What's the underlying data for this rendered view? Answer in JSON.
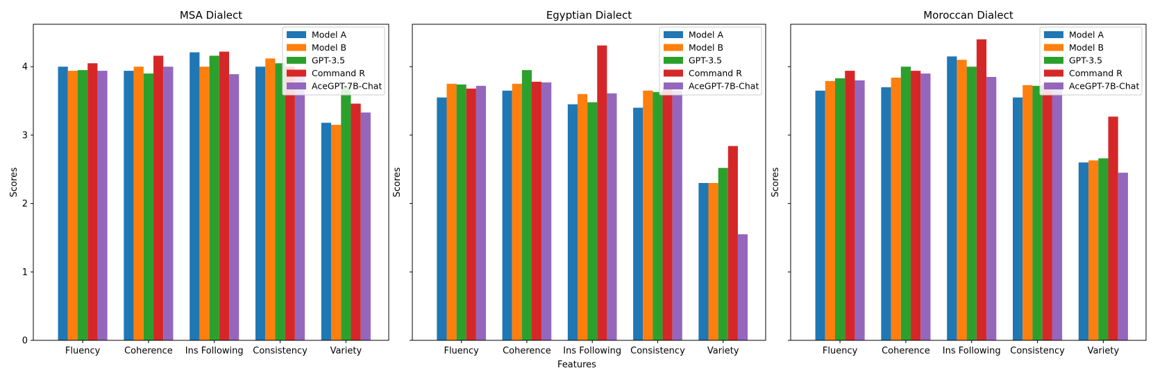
{
  "figure": {
    "xlabel": "Features"
  },
  "legend": {
    "entries": [
      {
        "name": "Model A",
        "color": "#1f77b4"
      },
      {
        "name": "Model B",
        "color": "#ff7f0e"
      },
      {
        "name": "GPT-3.5",
        "color": "#2ca02c"
      },
      {
        "name": "Command R",
        "color": "#d62728"
      },
      {
        "name": "AceGPT-7B-Chat",
        "color": "#9467bd"
      }
    ],
    "placement": "top-right"
  },
  "chart_data": [
    {
      "type": "bar",
      "title": "MSA Dialect",
      "xlabel": "",
      "ylabel": "Scores",
      "ylim": [
        0,
        4.62
      ],
      "yticks": [
        0,
        1,
        2,
        3,
        4
      ],
      "grid": false,
      "categories": [
        "Fluency",
        "Coherence",
        "Ins Following",
        "Consistency",
        "Variety"
      ],
      "series": [
        {
          "name": "Model A",
          "values": [
            4.0,
            3.94,
            4.21,
            4.0,
            3.18
          ]
        },
        {
          "name": "Model B",
          "values": [
            3.94,
            4.0,
            4.0,
            4.12,
            3.15
          ]
        },
        {
          "name": "GPT-3.5",
          "values": [
            3.95,
            3.9,
            4.16,
            4.05,
            3.7
          ]
        },
        {
          "name": "Command R",
          "values": [
            4.05,
            4.16,
            4.22,
            4.0,
            3.46
          ]
        },
        {
          "name": "AceGPT-7B-Chat",
          "values": [
            3.94,
            4.0,
            3.89,
            3.95,
            3.33
          ]
        }
      ]
    },
    {
      "type": "bar",
      "title": "Egyptian Dialect",
      "xlabel": "Features",
      "ylabel": "Scores",
      "ylim": [
        0,
        4.62
      ],
      "yticks": [
        0,
        1,
        2,
        3,
        4
      ],
      "grid": false,
      "categories": [
        "Fluency",
        "Coherence",
        "Ins Following",
        "Consistency",
        "Variety"
      ],
      "series": [
        {
          "name": "Model A",
          "values": [
            3.55,
            3.65,
            3.45,
            3.4,
            2.3
          ]
        },
        {
          "name": "Model B",
          "values": [
            3.75,
            3.75,
            3.6,
            3.65,
            2.3
          ]
        },
        {
          "name": "GPT-3.5",
          "values": [
            3.74,
            3.95,
            3.48,
            3.63,
            2.52
          ]
        },
        {
          "name": "Command R",
          "values": [
            3.68,
            3.78,
            4.31,
            3.7,
            2.84
          ]
        },
        {
          "name": "AceGPT-7B-Chat",
          "values": [
            3.72,
            3.77,
            3.61,
            3.65,
            1.55
          ]
        }
      ]
    },
    {
      "type": "bar",
      "title": "Moroccan Dialect",
      "xlabel": "",
      "ylabel": "Scores",
      "ylim": [
        0,
        4.62
      ],
      "yticks": [
        0,
        1,
        2,
        3,
        4
      ],
      "grid": false,
      "categories": [
        "Fluency",
        "Coherence",
        "Ins Following",
        "Consistency",
        "Variety"
      ],
      "series": [
        {
          "name": "Model A",
          "values": [
            3.65,
            3.7,
            4.15,
            3.55,
            2.6
          ]
        },
        {
          "name": "Model B",
          "values": [
            3.79,
            3.84,
            4.1,
            3.73,
            2.63
          ]
        },
        {
          "name": "GPT-3.5",
          "values": [
            3.83,
            4.0,
            4.0,
            3.72,
            2.66
          ]
        },
        {
          "name": "Command R",
          "values": [
            3.94,
            3.94,
            4.4,
            3.75,
            3.27
          ]
        },
        {
          "name": "AceGPT-7B-Chat",
          "values": [
            3.8,
            3.9,
            3.85,
            3.7,
            2.45
          ]
        }
      ]
    }
  ]
}
